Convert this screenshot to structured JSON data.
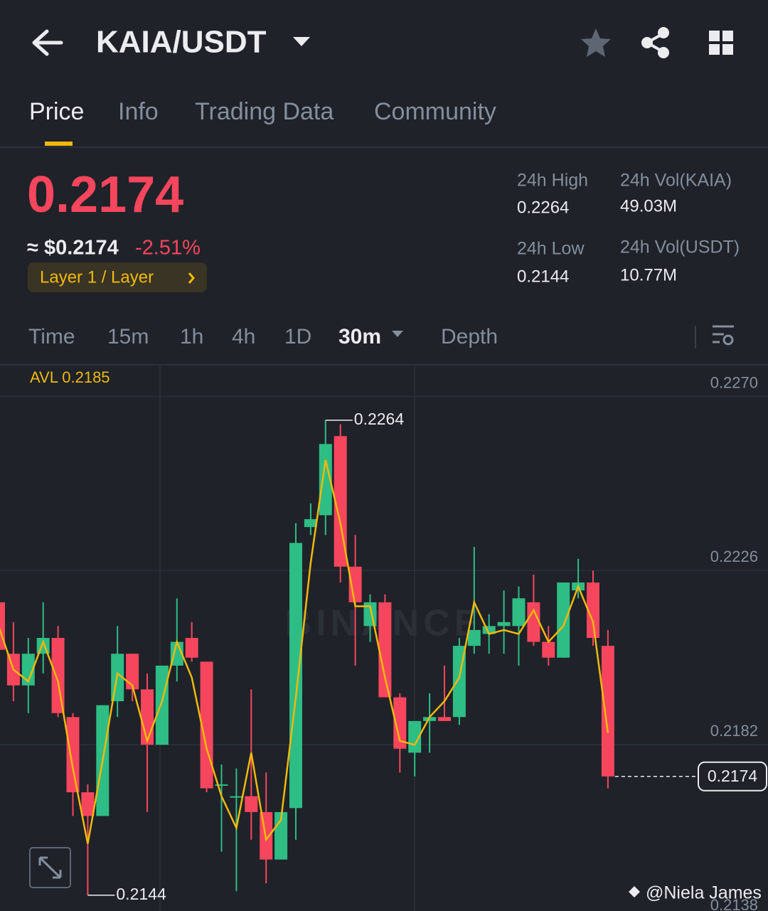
{
  "header": {
    "pair": "KAIA/USDT"
  },
  "tabs": [
    "Price",
    "Info",
    "Trading Data",
    "Community"
  ],
  "ticker": {
    "price": "0.2174",
    "usd_price": "≈ $0.2174",
    "change": "-2.51%",
    "tag": "Layer 1 / Layer"
  },
  "stats": [
    {
      "label": "24h High",
      "value": "0.2264"
    },
    {
      "label": "24h Vol(KAIA)",
      "value": "49.03M"
    },
    {
      "label": "24h Low",
      "value": "0.2144"
    },
    {
      "label": "24h Vol(USDT)",
      "value": "10.77M"
    }
  ],
  "intervals": [
    "Time",
    "15m",
    "1h",
    "4h",
    "1D",
    "30m",
    "Depth"
  ],
  "chart_data": {
    "type": "candlestick",
    "avl": "AVL 0.2185",
    "watermark": "BINANCE",
    "up_color": "#2ebd85",
    "down_color": "#f6465d",
    "ma_color": "#f0b90b",
    "open": [
      0.2218,
      0.2205,
      0.2197,
      0.2205,
      0.2209,
      0.2189,
      0.217,
      0.2164,
      0.2193,
      0.2205,
      0.2196,
      0.2182,
      0.2202,
      0.2209,
      0.2203,
      0.2172,
      0.2169,
      0.2169,
      0.2165,
      0.2153,
      0.2166,
      0.2237,
      0.224,
      0.226,
      0.2227,
      0.2212,
      0.2218,
      0.2194,
      0.218,
      0.2188,
      0.2189,
      0.2189,
      0.2207,
      0.221,
      0.2212,
      0.2212,
      0.2218,
      0.2208,
      0.2204,
      0.2221,
      0.2223,
      0.2207
    ],
    "high": [
      0.2218,
      0.2213,
      0.2209,
      0.2218,
      0.2212,
      0.219,
      0.2172,
      0.2192,
      0.2212,
      0.2205,
      0.22,
      0.2202,
      0.2219,
      0.2213,
      0.2203,
      0.2177,
      0.2176,
      0.2196,
      0.2175,
      0.2165,
      0.2238,
      0.2243,
      0.2264,
      0.2263,
      0.2235,
      0.222,
      0.222,
      0.2195,
      0.2188,
      0.2195,
      0.2202,
      0.2209,
      0.2232,
      0.2215,
      0.2221,
      0.2222,
      0.2225,
      0.2212,
      0.2223,
      0.2229,
      0.2226,
      0.2211
    ],
    "low": [
      0.2206,
      0.2193,
      0.219,
      0.22,
      0.2189,
      0.2164,
      0.2144,
      0.2164,
      0.2189,
      0.2193,
      0.2165,
      0.2182,
      0.2198,
      0.2203,
      0.217,
      0.2155,
      0.2145,
      0.2158,
      0.2147,
      0.2153,
      0.2158,
      0.2235,
      0.2235,
      0.2223,
      0.2202,
      0.2208,
      0.2194,
      0.2175,
      0.2174,
      0.218,
      0.2188,
      0.2187,
      0.2205,
      0.2205,
      0.2205,
      0.2202,
      0.2207,
      0.2202,
      0.2204,
      0.2219,
      0.2207,
      0.2171
    ],
    "close": [
      0.2206,
      0.2197,
      0.2205,
      0.2209,
      0.219,
      0.217,
      0.2164,
      0.2192,
      0.2205,
      0.2196,
      0.2182,
      0.2202,
      0.2208,
      0.2204,
      0.2171,
      0.2172,
      0.2169,
      0.2165,
      0.2153,
      0.2165,
      0.2233,
      0.2239,
      0.2258,
      0.2227,
      0.2218,
      0.2218,
      0.2194,
      0.2181,
      0.2188,
      0.2189,
      0.2188,
      0.2207,
      0.2211,
      0.2212,
      0.2213,
      0.2219,
      0.2208,
      0.2204,
      0.2223,
      0.2223,
      0.2209,
      0.2174
    ],
    "ma": [
      0.2212,
      0.2201,
      0.2198,
      0.2208,
      0.2198,
      0.2176,
      0.2157,
      0.2178,
      0.22,
      0.2197,
      0.2183,
      0.2193,
      0.2208,
      0.2199,
      0.2181,
      0.2169,
      0.2161,
      0.218,
      0.2158,
      0.2163,
      0.2194,
      0.2228,
      0.2254,
      0.2238,
      0.2217,
      0.2217,
      0.2199,
      0.2183,
      0.2182,
      0.2189,
      0.2193,
      0.2199,
      0.2218,
      0.221,
      0.2211,
      0.221,
      0.2216,
      0.2208,
      0.2212,
      0.2222,
      0.2213,
      0.2185
    ],
    "high_marker": 0.2264,
    "low_marker": 0.2144,
    "last_price": 0.2174,
    "ylim": [
      0.214,
      0.2278
    ],
    "yticks": [
      {
        "value": 0.227,
        "label": "0.2270"
      },
      0.2226,
      0.2182,
      0.2138
    ],
    "grid": true
  },
  "watermark_user": "@Niela James"
}
